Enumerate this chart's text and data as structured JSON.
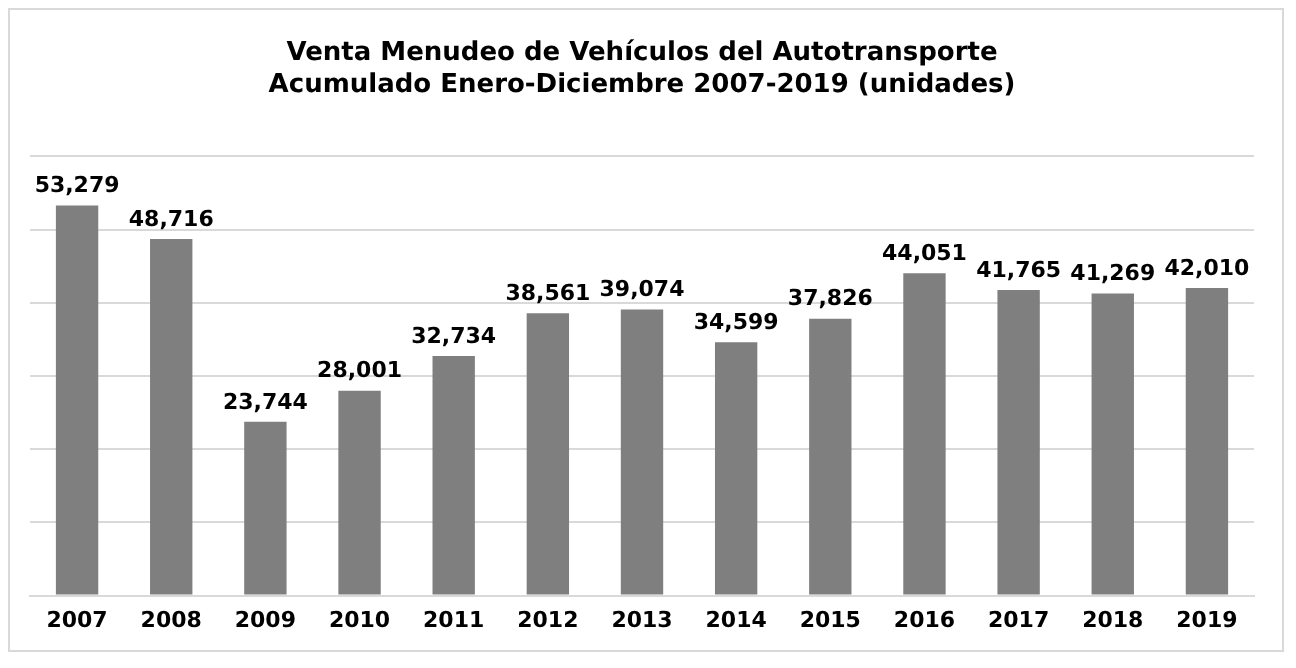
{
  "chart_data": {
    "type": "bar",
    "title": "Venta Menudeo de Vehículos del Autotransporte\nAcumulado Enero-Diciembre 2007-2019 (unidades)",
    "categories": [
      "2007",
      "2008",
      "2009",
      "2010",
      "2011",
      "2012",
      "2013",
      "2014",
      "2015",
      "2016",
      "2017",
      "2018",
      "2019"
    ],
    "values": [
      53279,
      48716,
      23744,
      28001,
      32734,
      38561,
      39074,
      34599,
      37826,
      44051,
      41765,
      41269,
      42010
    ],
    "value_labels": [
      "53,279",
      "48,716",
      "23,744",
      "28,001",
      "32,734",
      "38,561",
      "39,074",
      "34,599",
      "37,826",
      "44,051",
      "41,765",
      "41,269",
      "42,010"
    ],
    "color": "#7f7f7f",
    "ylim": [
      0,
      60000
    ],
    "yticks": [
      {
        "value": 0,
        "label": null
      },
      {
        "value": 10000,
        "label": null
      },
      {
        "value": 20000,
        "label": null
      },
      {
        "value": 30000,
        "label": null
      },
      {
        "value": 40000,
        "label": null
      },
      {
        "value": 50000,
        "label": null
      },
      {
        "value": 60000,
        "label": null
      }
    ],
    "grid": "y",
    "tick_labels": "x"
  }
}
